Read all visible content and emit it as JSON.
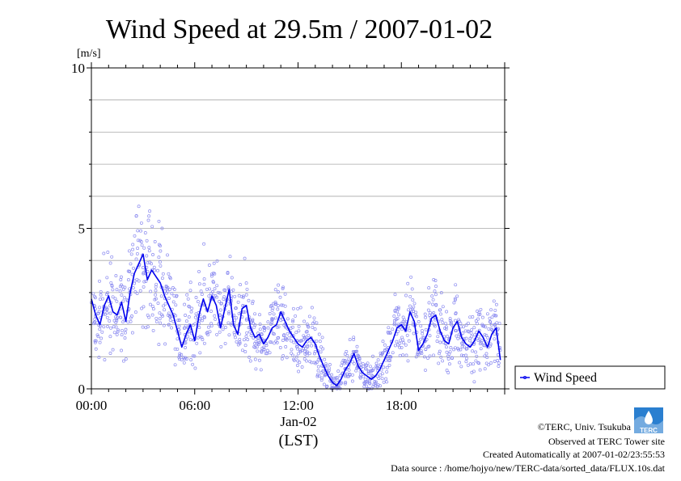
{
  "header": {
    "title": "Wind Speed at 29.5m / 2007-01-02"
  },
  "chart_data": {
    "type": "line",
    "title": "Wind Speed at 29.5m / 2007-01-02",
    "ylabel": "[m/s]",
    "xlabel": "(LST)",
    "x_date_label": "Jan-02",
    "x_unit": "hours (LST)",
    "xlim": [
      0,
      24
    ],
    "ylim": [
      0,
      10
    ],
    "grid": true,
    "legend_position": "right",
    "y_ticks": [
      {
        "value": 0,
        "label": "0"
      },
      {
        "value": 5,
        "label": "5"
      },
      {
        "value": 10,
        "label": "10"
      }
    ],
    "x_ticks": [
      {
        "value": 0,
        "label": "00:00"
      },
      {
        "value": 6,
        "label": "06:00"
      },
      {
        "value": 12,
        "label": "12:00"
      },
      {
        "value": 18,
        "label": "18:00"
      }
    ],
    "series": [
      {
        "name": "Wind Speed",
        "color": "#0000ee",
        "scatter_color": "#8c8cf0",
        "x": [
          0.0,
          0.25,
          0.5,
          0.75,
          1.0,
          1.25,
          1.5,
          1.75,
          2.0,
          2.25,
          2.5,
          2.75,
          3.0,
          3.25,
          3.5,
          3.75,
          4.0,
          4.25,
          4.5,
          4.75,
          5.0,
          5.25,
          5.5,
          5.75,
          6.0,
          6.25,
          6.5,
          6.75,
          7.0,
          7.25,
          7.5,
          7.75,
          8.0,
          8.25,
          8.5,
          8.75,
          9.0,
          9.25,
          9.5,
          9.75,
          10.0,
          10.25,
          10.5,
          10.75,
          11.0,
          11.25,
          11.5,
          11.75,
          12.0,
          12.25,
          12.5,
          12.75,
          13.0,
          13.25,
          13.5,
          13.75,
          14.0,
          14.25,
          14.5,
          14.75,
          15.0,
          15.25,
          15.5,
          15.75,
          16.0,
          16.25,
          16.5,
          16.75,
          17.0,
          17.25,
          17.5,
          17.75,
          18.0,
          18.25,
          18.5,
          18.75,
          19.0,
          19.25,
          19.5,
          19.75,
          20.0,
          20.25,
          20.5,
          20.75,
          21.0,
          21.25,
          21.5,
          21.75,
          22.0,
          22.25,
          22.5,
          22.75,
          23.0,
          23.25,
          23.5,
          23.75
        ],
        "values": [
          2.8,
          2.3,
          2.0,
          2.6,
          2.9,
          2.4,
          2.3,
          2.7,
          2.1,
          3.0,
          3.6,
          3.9,
          4.2,
          3.4,
          3.7,
          3.5,
          3.3,
          2.9,
          2.6,
          2.3,
          1.8,
          1.3,
          1.7,
          2.0,
          1.5,
          2.3,
          2.8,
          2.4,
          2.9,
          2.6,
          1.9,
          2.5,
          3.1,
          2.0,
          1.7,
          2.5,
          2.6,
          1.9,
          1.6,
          1.7,
          1.4,
          1.6,
          1.9,
          2.0,
          2.4,
          2.1,
          1.8,
          1.6,
          1.4,
          1.3,
          1.5,
          1.6,
          1.4,
          1.0,
          0.7,
          0.4,
          0.2,
          0.1,
          0.3,
          0.6,
          0.8,
          1.1,
          0.7,
          0.5,
          0.4,
          0.3,
          0.4,
          0.6,
          0.9,
          1.2,
          1.5,
          1.9,
          2.0,
          1.8,
          2.4,
          2.1,
          1.2,
          1.4,
          1.7,
          2.2,
          2.3,
          1.8,
          1.5,
          1.4,
          1.9,
          2.1,
          1.6,
          1.4,
          1.3,
          1.5,
          1.8,
          1.6,
          1.3,
          1.7,
          1.9,
          0.9
        ]
      }
    ],
    "credits": [
      "©TERC, Univ. Tsukuba",
      "Observed at TERC Tower site",
      "Created Automatically at 2007-01-02/23:55:53",
      "Data source : /home/hojyo/new/TERC-data/sorted_data/FLUX.10s.dat"
    ]
  },
  "logo": {
    "text": "TERC",
    "color": "#2a7fd0"
  }
}
